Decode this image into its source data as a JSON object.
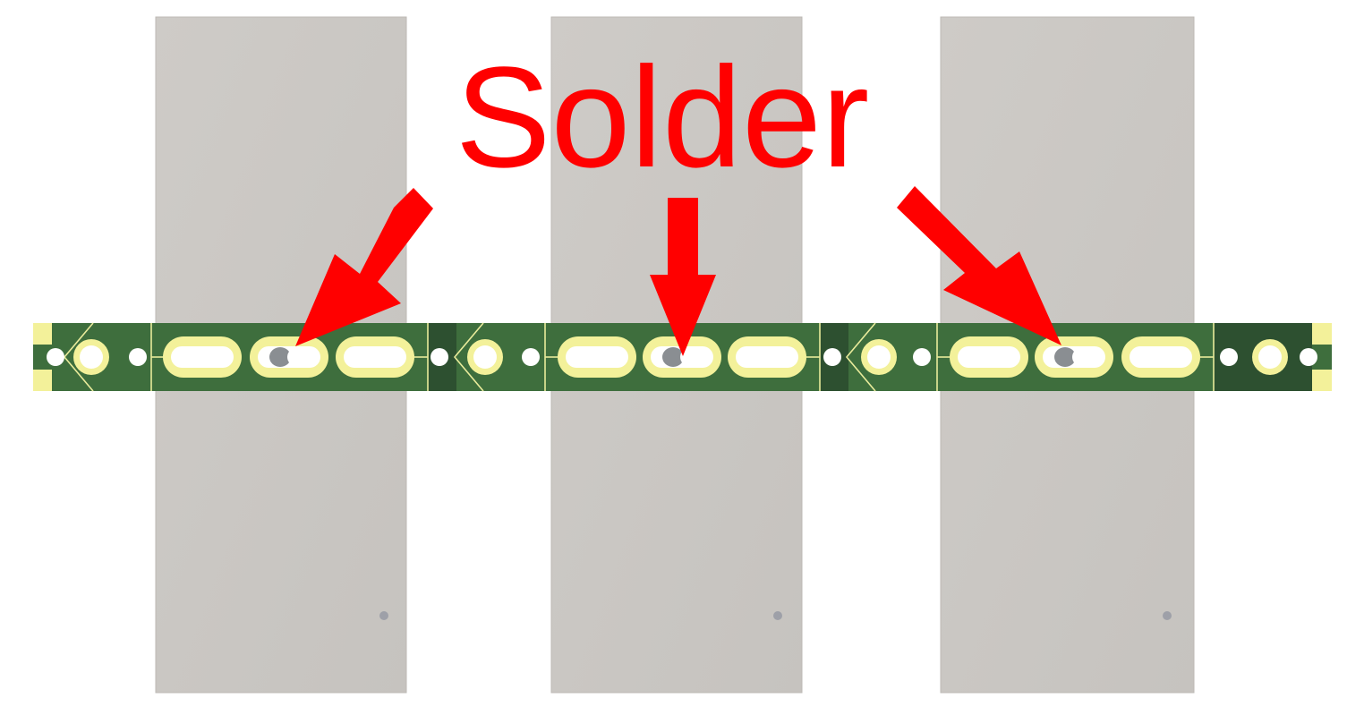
{
  "annotation": {
    "label": "Solder"
  },
  "colors": {
    "background": "#ffffff",
    "tile": "#cbc8c4",
    "tile_edge": "#bdb9b4",
    "pcb": "#3e6e3d",
    "pcb_dark": "#2d5030",
    "silkscreen": "#e9eb9b",
    "pad_gold": "#f3f19a",
    "hole": "#ffffff",
    "solder_shadow": "#8a8e92",
    "arrow": "#ff0000",
    "text": "#ff0000"
  },
  "icons": {
    "arrow": "arrow-icon",
    "mounting_hole": "mounting-hole-icon",
    "slot_pad": "slot-pad-icon"
  }
}
